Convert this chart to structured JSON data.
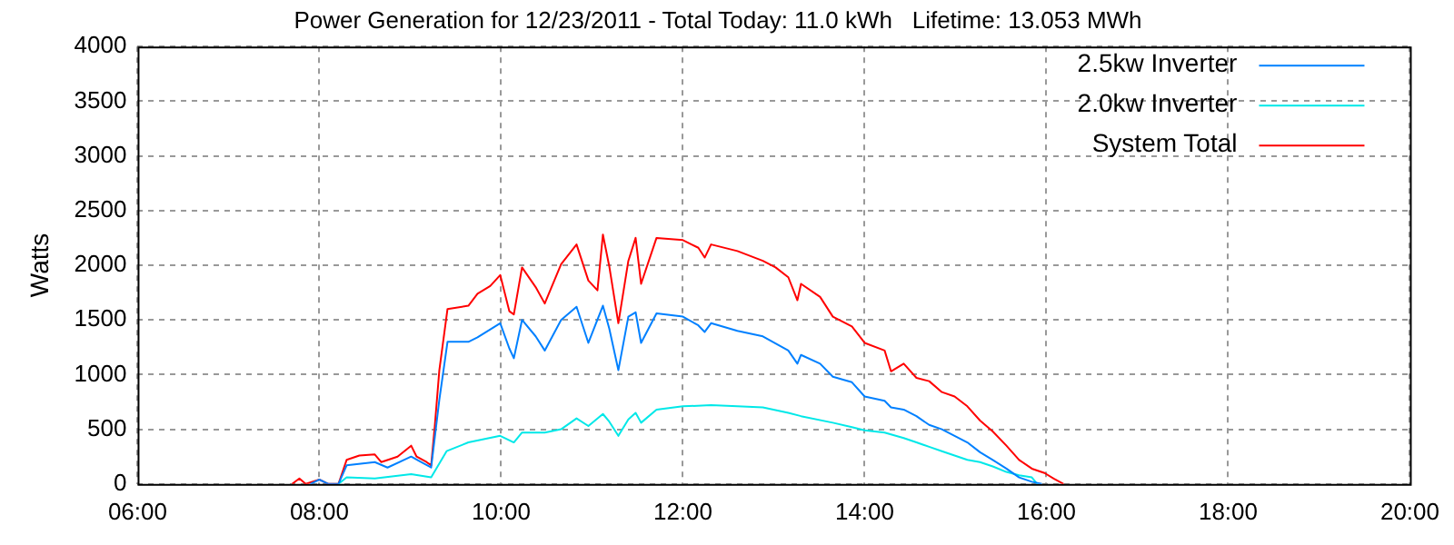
{
  "chart_data": {
    "type": "line",
    "title": "Power Generation for 12/23/2011 - Total Today: 11.0 kWh   Lifetime: 13.053 MWh",
    "ylabel": "Watts",
    "xlim": [
      6,
      20
    ],
    "xticks": [
      {
        "value": 6,
        "label": "06:00"
      },
      {
        "value": 8,
        "label": "08:00"
      },
      {
        "value": 10,
        "label": "10:00"
      },
      {
        "value": 12,
        "label": "12:00"
      },
      {
        "value": 14,
        "label": "14:00"
      },
      {
        "value": 16,
        "label": "16:00"
      },
      {
        "value": 18,
        "label": "18:00"
      },
      {
        "value": 20,
        "label": "20:00"
      }
    ],
    "ylim": [
      0,
      4000
    ],
    "yticks": [
      0,
      500,
      1000,
      1500,
      2000,
      2500,
      3000,
      3500,
      4000
    ],
    "grid": true,
    "legend": "top right",
    "marker": "none",
    "line_style": "solid",
    "series": [
      {
        "name": "2.5kw Inverter",
        "color": "#0080ff",
        "x": [
          7.9,
          8.0,
          8.1,
          8.21,
          8.3,
          8.61,
          8.75,
          9.01,
          9.23,
          9.32,
          9.41,
          9.64,
          9.74,
          9.99,
          10.09,
          10.14,
          10.23,
          10.38,
          10.48,
          10.66,
          10.83,
          10.96,
          11.12,
          11.19,
          11.29,
          11.4,
          11.48,
          11.54,
          11.71,
          12.0,
          12.17,
          12.24,
          12.31,
          12.6,
          12.88,
          13.16,
          13.26,
          13.3,
          13.51,
          13.65,
          13.86,
          14.0,
          14.22,
          14.29,
          14.43,
          14.57,
          14.71,
          14.85,
          14.99,
          15.13,
          15.27,
          15.41,
          15.56,
          15.7,
          15.84,
          15.95
        ],
        "values": [
          0,
          40,
          0,
          0,
          170,
          200,
          150,
          250,
          150,
          770,
          1300,
          1300,
          1340,
          1470,
          1240,
          1150,
          1500,
          1350,
          1220,
          1500,
          1620,
          1290,
          1630,
          1420,
          1040,
          1530,
          1570,
          1290,
          1560,
          1530,
          1450,
          1390,
          1470,
          1400,
          1350,
          1220,
          1100,
          1180,
          1100,
          980,
          930,
          800,
          760,
          700,
          680,
          620,
          540,
          500,
          440,
          380,
          290,
          220,
          140,
          60,
          20,
          0
        ]
      },
      {
        "name": "2.0kw Inverter",
        "color": "#00e8e8",
        "x": [
          8.21,
          8.3,
          8.61,
          9.01,
          9.23,
          9.4,
          9.64,
          9.99,
          10.14,
          10.23,
          10.48,
          10.66,
          10.83,
          10.96,
          11.12,
          11.19,
          11.29,
          11.4,
          11.48,
          11.54,
          11.71,
          12.0,
          12.31,
          12.6,
          12.88,
          13.16,
          13.3,
          13.65,
          13.86,
          14.0,
          14.22,
          14.43,
          14.57,
          14.71,
          14.85,
          14.99,
          15.13,
          15.27,
          15.41,
          15.56,
          15.7,
          15.84,
          15.9
        ],
        "values": [
          0,
          60,
          50,
          90,
          60,
          300,
          380,
          440,
          380,
          470,
          470,
          500,
          600,
          530,
          640,
          570,
          440,
          590,
          650,
          560,
          680,
          710,
          720,
          710,
          700,
          650,
          620,
          560,
          520,
          490,
          470,
          420,
          380,
          340,
          300,
          260,
          220,
          200,
          160,
          110,
          80,
          60,
          0
        ]
      },
      {
        "name": "System Total",
        "color": "#ff0000",
        "x": [
          7.7,
          7.78,
          7.85,
          8.0,
          8.1,
          8.21,
          8.3,
          8.44,
          8.61,
          8.68,
          8.86,
          9.01,
          9.07,
          9.18,
          9.23,
          9.27,
          9.32,
          9.41,
          9.64,
          9.74,
          9.88,
          9.99,
          10.09,
          10.14,
          10.23,
          10.38,
          10.48,
          10.66,
          10.83,
          10.96,
          11.06,
          11.12,
          11.19,
          11.29,
          11.4,
          11.48,
          11.54,
          11.71,
          12.0,
          12.17,
          12.24,
          12.31,
          12.6,
          12.88,
          13.02,
          13.16,
          13.26,
          13.3,
          13.51,
          13.65,
          13.86,
          14.0,
          14.22,
          14.29,
          14.43,
          14.57,
          14.71,
          14.85,
          14.99,
          15.13,
          15.27,
          15.41,
          15.56,
          15.7,
          15.84,
          15.98,
          16.08,
          16.19
        ],
        "values": [
          0,
          50,
          0,
          40,
          0,
          0,
          220,
          260,
          270,
          200,
          250,
          350,
          250,
          200,
          170,
          530,
          1040,
          1600,
          1630,
          1740,
          1810,
          1910,
          1580,
          1550,
          1980,
          1800,
          1650,
          2010,
          2190,
          1860,
          1770,
          2280,
          1990,
          1470,
          2040,
          2250,
          1830,
          2250,
          2230,
          2160,
          2070,
          2190,
          2130,
          2040,
          1980,
          1890,
          1680,
          1830,
          1710,
          1530,
          1440,
          1290,
          1220,
          1030,
          1100,
          970,
          940,
          840,
          800,
          710,
          580,
          480,
          350,
          220,
          140,
          100,
          50,
          0
        ]
      }
    ]
  }
}
